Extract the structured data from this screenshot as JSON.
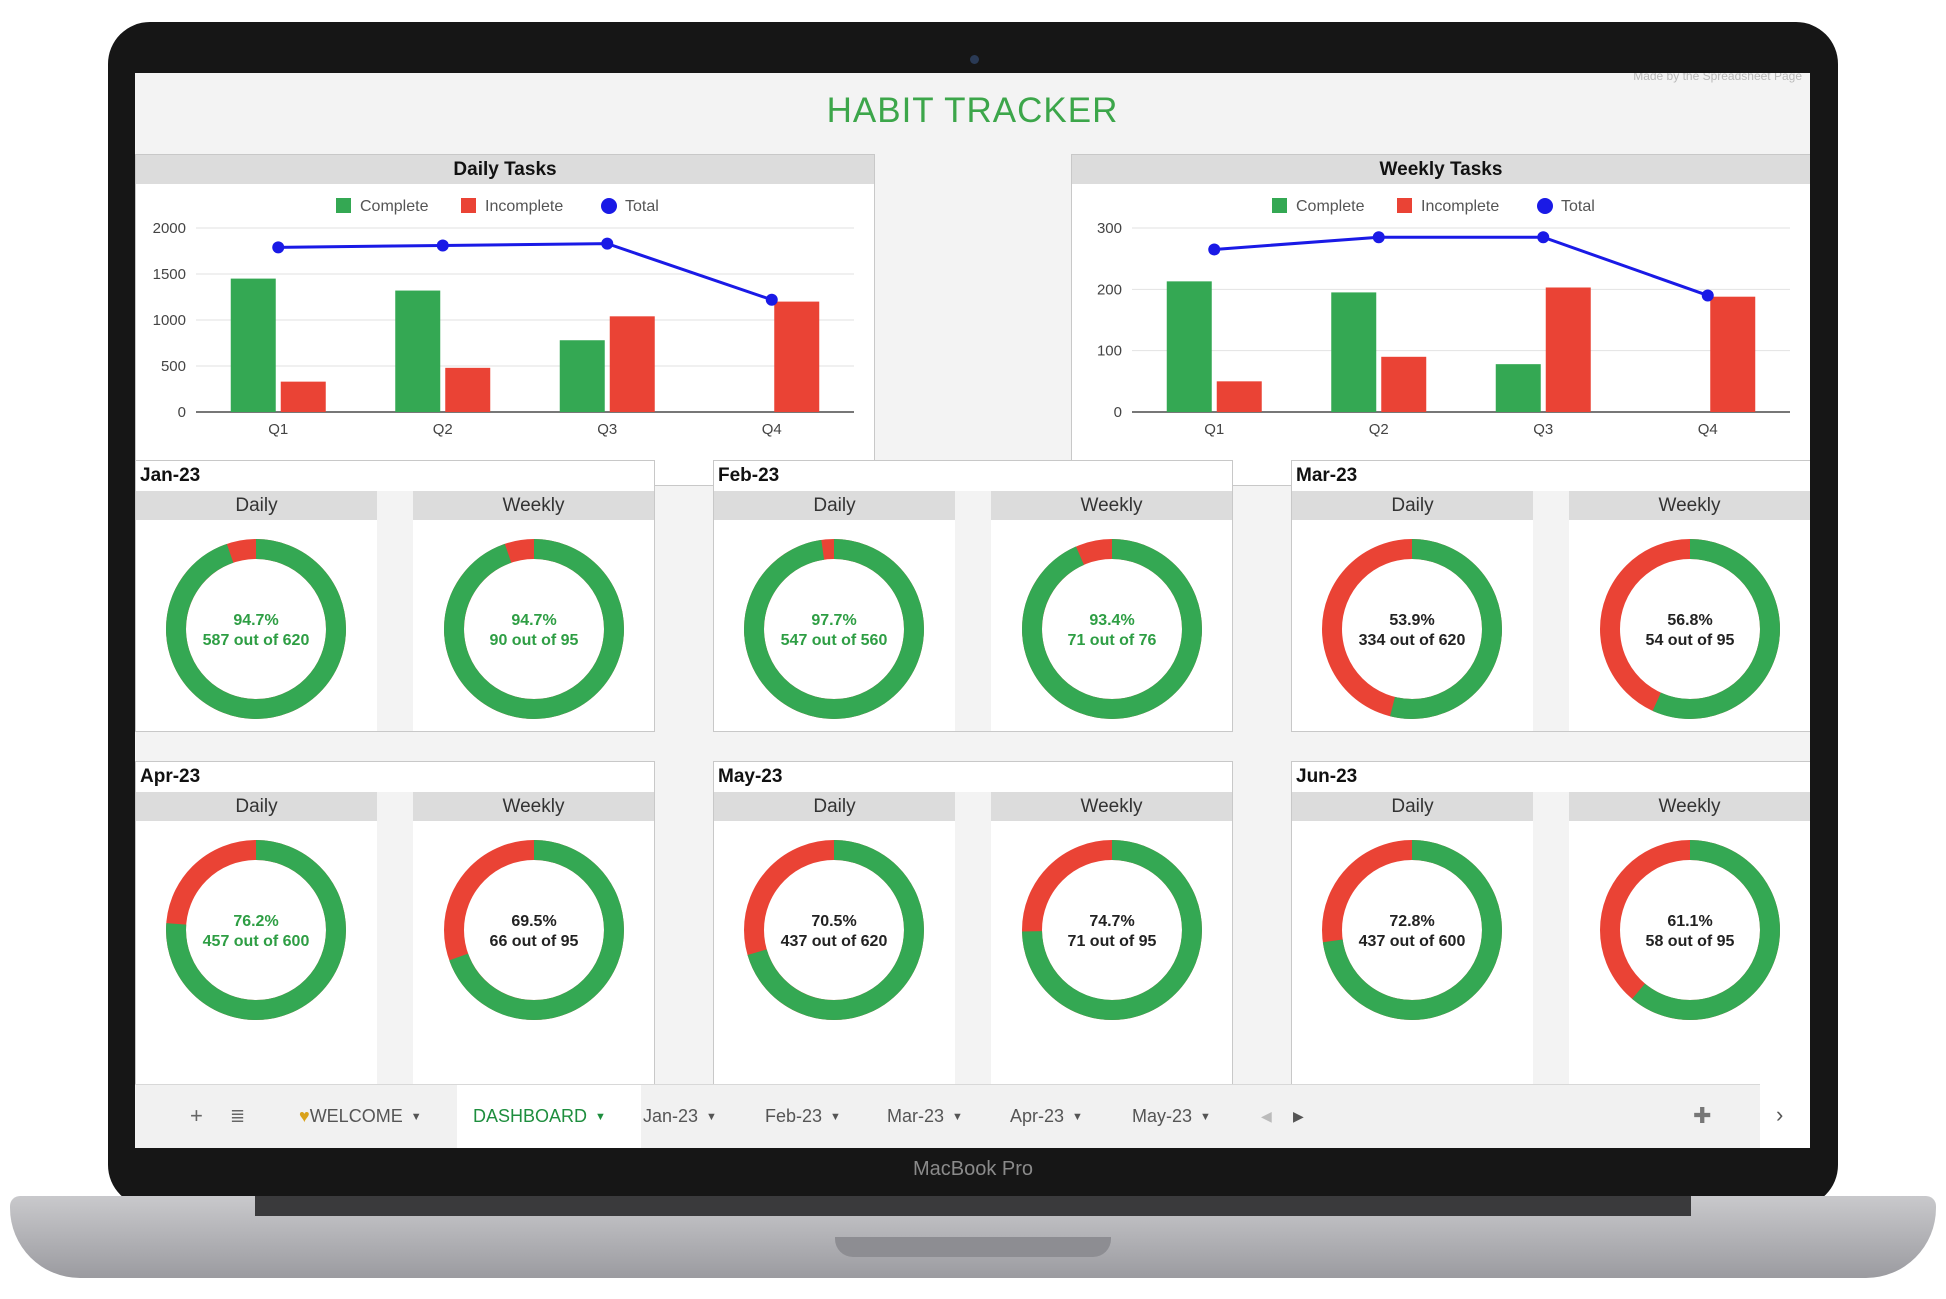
{
  "device": {
    "model_label": "MacBook Pro"
  },
  "page": {
    "title": "HABIT TRACKER",
    "faint_note": "Made by the Spreadsheet Page"
  },
  "legend": {
    "complete": "Complete",
    "incomplete": "Incomplete",
    "total": "Total"
  },
  "colors": {
    "complete": "#34a853",
    "incomplete": "#ea4335",
    "total": "#1a1ae6",
    "title": "#3ca64a"
  },
  "chart_data": [
    {
      "type": "bar",
      "title": "Daily Tasks",
      "categories": [
        "Q1",
        "Q2",
        "Q3",
        "Q4"
      ],
      "series": [
        {
          "name": "Complete",
          "values": [
            1450,
            1320,
            780,
            0
          ]
        },
        {
          "name": "Incomplete",
          "values": [
            330,
            480,
            1040,
            1200
          ]
        },
        {
          "name": "Total",
          "type": "line",
          "values": [
            1790,
            1810,
            1830,
            1220
          ]
        }
      ],
      "ylim": [
        0,
        2000
      ],
      "yticks": [
        "0",
        "500",
        "1000",
        "1500",
        "2000"
      ],
      "legend_position": "top",
      "grid": true
    },
    {
      "type": "bar",
      "title": "Weekly Tasks",
      "categories": [
        "Q1",
        "Q2",
        "Q3",
        "Q4"
      ],
      "series": [
        {
          "name": "Complete",
          "values": [
            213,
            195,
            78,
            0
          ]
        },
        {
          "name": "Incomplete",
          "values": [
            50,
            90,
            203,
            188
          ]
        },
        {
          "name": "Total",
          "type": "line",
          "values": [
            265,
            285,
            285,
            190
          ]
        }
      ],
      "ylim": [
        0,
        300
      ],
      "yticks": [
        "0",
        "100",
        "200",
        "300"
      ],
      "legend_position": "top",
      "grid": true
    }
  ],
  "months": [
    {
      "name": "Jan-23",
      "daily": {
        "pct": 94.7,
        "pct_text": "94.7%",
        "count_text": "587 out of 620"
      },
      "weekly": {
        "pct": 94.7,
        "pct_text": "94.7%",
        "count_text": "90 out of 95"
      }
    },
    {
      "name": "Feb-23",
      "daily": {
        "pct": 97.7,
        "pct_text": "97.7%",
        "count_text": "547 out of 560"
      },
      "weekly": {
        "pct": 93.4,
        "pct_text": "93.4%",
        "count_text": "71 out of 76"
      }
    },
    {
      "name": "Mar-23",
      "daily": {
        "pct": 53.9,
        "pct_text": "53.9%",
        "count_text": "334 out of 620"
      },
      "weekly": {
        "pct": 56.8,
        "pct_text": "56.8%",
        "count_text": "54 out of 95"
      }
    },
    {
      "name": "Apr-23",
      "daily": {
        "pct": 76.2,
        "pct_text": "76.2%",
        "count_text": "457 out of 600"
      },
      "weekly": {
        "pct": 69.5,
        "pct_text": "69.5%",
        "count_text": "66 out of 95"
      }
    },
    {
      "name": "May-23",
      "daily": {
        "pct": 70.5,
        "pct_text": "70.5%",
        "count_text": "437 out of 620"
      },
      "weekly": {
        "pct": 74.7,
        "pct_text": "74.7%",
        "count_text": "71 out of 95"
      }
    },
    {
      "name": "Jun-23",
      "daily": {
        "pct": 72.8,
        "pct_text": "72.8%",
        "count_text": "437 out of 600"
      },
      "weekly": {
        "pct": 61.1,
        "pct_text": "61.1%",
        "count_text": "58 out of 95"
      }
    }
  ],
  "sub_headers": {
    "daily": "Daily",
    "weekly": "Weekly"
  },
  "tabs": [
    {
      "label": "WELCOME",
      "icon": "heart-icon",
      "active": false
    },
    {
      "label": "DASHBOARD",
      "active": true
    },
    {
      "label": "Jan-23",
      "active": false
    },
    {
      "label": "Feb-23",
      "active": false
    },
    {
      "label": "Mar-23",
      "active": false
    },
    {
      "label": "Apr-23",
      "active": false
    },
    {
      "label": "May-23",
      "active": false
    }
  ]
}
